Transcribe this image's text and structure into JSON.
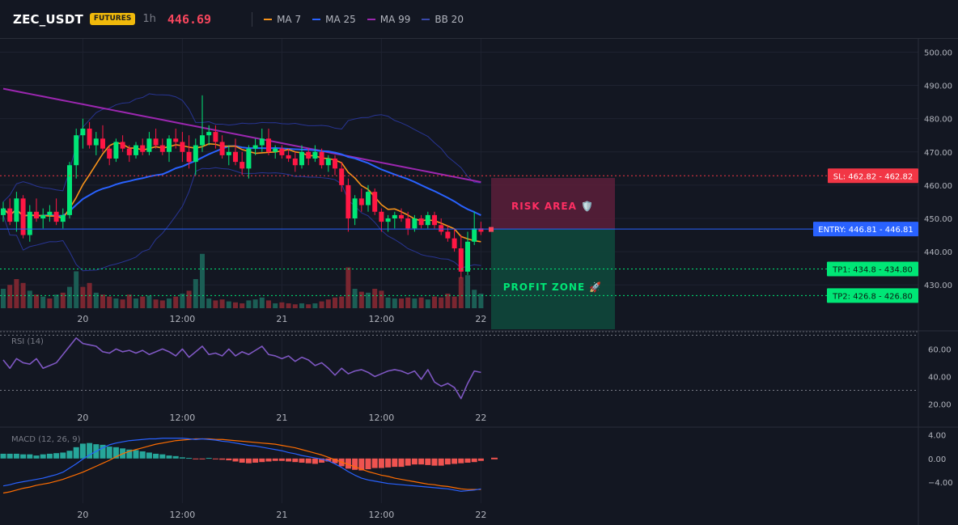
{
  "header": {
    "symbol": "ZEC_USDT",
    "badge": "FUTURES",
    "timeframe": "1h",
    "price": "446.69",
    "legend": [
      {
        "label": "MA 7",
        "color": "#f7931a"
      },
      {
        "label": "MA 25",
        "color": "#2962ff"
      },
      {
        "label": "MA 99",
        "color": "#9c27b0"
      },
      {
        "label": "BB 20",
        "color": "#3949ab"
      }
    ]
  },
  "colors": {
    "up": "#26a69a",
    "down": "#ef5350",
    "up_bright": "#00e676",
    "down_bright": "#ff1744",
    "vol_up": "#1b5e55",
    "vol_down": "#7a2630",
    "ma7": "#f7931a",
    "ma25": "#2962ff",
    "ma99": "#9c27b0",
    "bb": "#283593",
    "rsi": "#7e57c2",
    "macd": "#2962ff",
    "signal": "#ff6d00",
    "hist_up": "#26a69a",
    "hist_down": "#ef5350",
    "sl": "#f23645",
    "tp": "#00e676",
    "entry": "#2962ff"
  },
  "zones": {
    "risk_label": "RISK AREA 🛡️",
    "profit_label": "PROFIT ZONE 🚀"
  },
  "levels": {
    "sl": {
      "value": 462.82,
      "label": "SL: 462.82 - 462.82"
    },
    "entry": {
      "value": 446.81,
      "label": "ENTRY: 446.81 - 446.81"
    },
    "tp1": {
      "value": 434.8,
      "label": "TP1: 434.8 - 434.80"
    },
    "tp2": {
      "value": 426.8,
      "label": "TP2: 426.8 - 426.80"
    }
  },
  "chart_data": [
    {
      "type": "candlestick",
      "ylim": [
        423,
        504
      ],
      "y_ticks": [
        430,
        440,
        450,
        460,
        470,
        480,
        490,
        500
      ],
      "y_tick_labels": [
        "430.00",
        "440.00",
        "450.00",
        "460.00",
        "470.00",
        "480.00",
        "490.00",
        "500.00"
      ],
      "x_ticks": [
        {
          "label": "20",
          "index": 12
        },
        {
          "label": "12:00",
          "index": 27
        },
        {
          "label": "21",
          "index": 42
        },
        {
          "label": "12:00",
          "index": 57
        },
        {
          "label": "22",
          "index": 72
        }
      ],
      "ohlc": [
        [
          451,
          455,
          449,
          453
        ],
        [
          453,
          456,
          448,
          449
        ],
        [
          449,
          458,
          446,
          456
        ],
        [
          456,
          457,
          444,
          445
        ],
        [
          445,
          454,
          443,
          452
        ],
        [
          452,
          456,
          449,
          450
        ],
        [
          450,
          453,
          447,
          451
        ],
        [
          451,
          454,
          449,
          452
        ],
        [
          452,
          456,
          448,
          449
        ],
        [
          449,
          453,
          447,
          451
        ],
        [
          451,
          467,
          450,
          466
        ],
        [
          466,
          477,
          462,
          475
        ],
        [
          475,
          480,
          471,
          477
        ],
        [
          477,
          479,
          471,
          472
        ],
        [
          472,
          476,
          469,
          474
        ],
        [
          474,
          478,
          470,
          471
        ],
        [
          471,
          472,
          466,
          468
        ],
        [
          468,
          474,
          467,
          473
        ],
        [
          473,
          475,
          470,
          471
        ],
        [
          471,
          472,
          467,
          469
        ],
        [
          469,
          473,
          468,
          472
        ],
        [
          472,
          474,
          469,
          470
        ],
        [
          470,
          476,
          469,
          474
        ],
        [
          474,
          477,
          471,
          472
        ],
        [
          472,
          474,
          469,
          470
        ],
        [
          470,
          475,
          467,
          474
        ],
        [
          474,
          477,
          471,
          473
        ],
        [
          473,
          476,
          467,
          470
        ],
        [
          470,
          475,
          465,
          467
        ],
        [
          467,
          474,
          463,
          472
        ],
        [
          472,
          487,
          470,
          475
        ],
        [
          475,
          478,
          472,
          476
        ],
        [
          476,
          478,
          471,
          473
        ],
        [
          473,
          475,
          468,
          469
        ],
        [
          469,
          472,
          466,
          470
        ],
        [
          470,
          474,
          466,
          467
        ],
        [
          467,
          470,
          463,
          465
        ],
        [
          465,
          472,
          462,
          471
        ],
        [
          471,
          474,
          469,
          472
        ],
        [
          472,
          477,
          470,
          474
        ],
        [
          474,
          477,
          469,
          470
        ],
        [
          470,
          472,
          468,
          471
        ],
        [
          471,
          472,
          468,
          469
        ],
        [
          469,
          471,
          467,
          468
        ],
        [
          468,
          470,
          464,
          466
        ],
        [
          466,
          472,
          465,
          470
        ],
        [
          470,
          471,
          466,
          468
        ],
        [
          468,
          472,
          467,
          470
        ],
        [
          470,
          471,
          465,
          466
        ],
        [
          466,
          469,
          464,
          468
        ],
        [
          468,
          469,
          463,
          465
        ],
        [
          465,
          467,
          458,
          460
        ],
        [
          460,
          462,
          446,
          450
        ],
        [
          450,
          457,
          448,
          456
        ],
        [
          456,
          459,
          452,
          454
        ],
        [
          454,
          460,
          452,
          458
        ],
        [
          458,
          459,
          451,
          452
        ],
        [
          452,
          453,
          446,
          449
        ],
        [
          449,
          451,
          446,
          450
        ],
        [
          450,
          452,
          447,
          451
        ],
        [
          451,
          453,
          449,
          450
        ],
        [
          450,
          452,
          445,
          447
        ],
        [
          447,
          451,
          446,
          450
        ],
        [
          450,
          451,
          447,
          448
        ],
        [
          448,
          452,
          447,
          451
        ],
        [
          451,
          452,
          447,
          448
        ],
        [
          448,
          450,
          445,
          446
        ],
        [
          446,
          448,
          443,
          444
        ],
        [
          444,
          447,
          440,
          441
        ],
        [
          441,
          445,
          432,
          434
        ],
        [
          434,
          446,
          433,
          443
        ],
        [
          443,
          452,
          442,
          447
        ],
        [
          447,
          449,
          445,
          446
        ]
      ],
      "volume": [
        [
          2.0,
          0
        ],
        [
          2.4,
          1
        ],
        [
          3.0,
          1
        ],
        [
          2.6,
          1
        ],
        [
          1.8,
          0
        ],
        [
          1.4,
          1
        ],
        [
          1.2,
          0
        ],
        [
          1.0,
          1
        ],
        [
          1.4,
          0
        ],
        [
          1.6,
          1
        ],
        [
          2.2,
          0
        ],
        [
          3.8,
          0
        ],
        [
          2.2,
          1
        ],
        [
          2.6,
          1
        ],
        [
          1.6,
          0
        ],
        [
          1.4,
          1
        ],
        [
          1.2,
          1
        ],
        [
          1.0,
          0
        ],
        [
          0.9,
          1
        ],
        [
          1.4,
          1
        ],
        [
          1.0,
          0
        ],
        [
          1.2,
          1
        ],
        [
          1.3,
          0
        ],
        [
          0.9,
          1
        ],
        [
          0.8,
          1
        ],
        [
          1.0,
          0
        ],
        [
          1.2,
          1
        ],
        [
          1.5,
          0
        ],
        [
          1.8,
          1
        ],
        [
          3.0,
          0
        ],
        [
          5.6,
          0
        ],
        [
          1.0,
          0
        ],
        [
          0.8,
          1
        ],
        [
          0.9,
          1
        ],
        [
          0.7,
          0
        ],
        [
          0.6,
          1
        ],
        [
          0.5,
          1
        ],
        [
          0.8,
          0
        ],
        [
          0.9,
          0
        ],
        [
          1.1,
          0
        ],
        [
          0.8,
          1
        ],
        [
          0.5,
          0
        ],
        [
          0.6,
          1
        ],
        [
          0.5,
          1
        ],
        [
          0.4,
          1
        ],
        [
          0.5,
          0
        ],
        [
          0.4,
          1
        ],
        [
          0.5,
          0
        ],
        [
          0.7,
          1
        ],
        [
          0.9,
          1
        ],
        [
          1.1,
          1
        ],
        [
          1.2,
          1
        ],
        [
          4.2,
          1
        ],
        [
          2.0,
          0
        ],
        [
          1.7,
          1
        ],
        [
          1.6,
          0
        ],
        [
          2.0,
          1
        ],
        [
          1.8,
          1
        ],
        [
          1.1,
          0
        ],
        [
          1.0,
          0
        ],
        [
          1.0,
          1
        ],
        [
          1.1,
          1
        ],
        [
          1.0,
          0
        ],
        [
          1.1,
          1
        ],
        [
          0.9,
          0
        ],
        [
          1.2,
          1
        ],
        [
          1.1,
          1
        ],
        [
          1.5,
          1
        ],
        [
          1.2,
          1
        ],
        [
          3.2,
          1
        ],
        [
          3.4,
          0
        ],
        [
          1.9,
          0
        ],
        [
          1.5,
          0
        ]
      ]
    },
    {
      "type": "line",
      "title": "RSI (14)",
      "ylim": [
        15,
        72
      ],
      "y_ticks": [
        20,
        40,
        60
      ],
      "y_tick_labels": [
        "20.00",
        "40.00",
        "60.00"
      ],
      "bands": [
        70,
        30
      ],
      "values": [
        52,
        46,
        53,
        50,
        49,
        53,
        46,
        48,
        50,
        56,
        62,
        68,
        64,
        63,
        62,
        58,
        57,
        60,
        58,
        59,
        57,
        59,
        56,
        58,
        60,
        58,
        55,
        60,
        54,
        58,
        62,
        56,
        57,
        55,
        60,
        55,
        58,
        56,
        59,
        62,
        56,
        55,
        53,
        55,
        51,
        54,
        52,
        48,
        50,
        46,
        41,
        46,
        42,
        44,
        45,
        43,
        40,
        42,
        44,
        45,
        44,
        42,
        44,
        38,
        45,
        36,
        33,
        35,
        32,
        24,
        35,
        44,
        43
      ]
    },
    {
      "type": "bar",
      "title": "MACD (12, 26, 9)",
      "ylim": [
        -7.5,
        5
      ],
      "y_ticks": [
        4,
        0,
        -4
      ],
      "y_tick_labels": [
        "4.00",
        "0.00",
        "−4.00"
      ],
      "histogram": [
        0.8,
        0.8,
        0.8,
        0.7,
        0.7,
        0.5,
        0.7,
        0.8,
        0.9,
        1.0,
        1.3,
        1.9,
        2.5,
        2.6,
        2.4,
        2.3,
        2.0,
        1.9,
        1.7,
        1.5,
        1.4,
        1.2,
        1.0,
        0.8,
        0.7,
        0.5,
        0.4,
        0.2,
        0.1,
        -0.1,
        -0.1,
        0.1,
        -0.1,
        -0.2,
        -0.3,
        -0.5,
        -0.7,
        -0.8,
        -0.7,
        -0.6,
        -0.5,
        -0.4,
        -0.4,
        -0.5,
        -0.6,
        -0.7,
        -0.8,
        -0.9,
        -0.7,
        -0.5,
        -0.8,
        -1.3,
        -1.7,
        -1.9,
        -2.0,
        -1.8,
        -1.6,
        -1.6,
        -1.5,
        -1.4,
        -1.4,
        -1.2,
        -1.0,
        -1.0,
        -1.1,
        -1.2,
        -1.2,
        -1.0,
        -0.9,
        -0.8,
        -0.7,
        -0.6,
        -0.4
      ],
      "macd": [
        -4.6,
        -4.4,
        -4.1,
        -3.9,
        -3.7,
        -3.5,
        -3.3,
        -3.0,
        -2.7,
        -2.3,
        -1.6,
        -0.9,
        -0.1,
        0.6,
        1.2,
        1.8,
        2.3,
        2.6,
        2.8,
        3.0,
        3.1,
        3.2,
        3.3,
        3.3,
        3.4,
        3.4,
        3.4,
        3.4,
        3.3,
        3.2,
        3.3,
        3.2,
        3.1,
        2.9,
        2.8,
        2.6,
        2.4,
        2.2,
        2.1,
        1.9,
        1.7,
        1.5,
        1.3,
        1.0,
        0.8,
        0.5,
        0.3,
        0.1,
        -0.1,
        -0.4,
        -0.9,
        -1.5,
        -2.2,
        -2.8,
        -3.3,
        -3.6,
        -3.8,
        -4.0,
        -4.2,
        -4.3,
        -4.4,
        -4.5,
        -4.6,
        -4.7,
        -4.8,
        -4.9,
        -5.0,
        -5.1,
        -5.3,
        -5.5,
        -5.4,
        -5.3,
        -5.1
      ],
      "signal": [
        -5.8,
        -5.6,
        -5.3,
        -5.0,
        -4.8,
        -4.5,
        -4.3,
        -4.1,
        -3.8,
        -3.5,
        -3.1,
        -2.7,
        -2.3,
        -1.8,
        -1.3,
        -0.8,
        -0.3,
        0.3,
        0.8,
        1.2,
        1.5,
        1.8,
        2.1,
        2.4,
        2.6,
        2.8,
        3.0,
        3.1,
        3.2,
        3.3,
        3.3,
        3.3,
        3.2,
        3.2,
        3.1,
        3.0,
        2.9,
        2.8,
        2.7,
        2.6,
        2.5,
        2.4,
        2.2,
        2.0,
        1.8,
        1.5,
        1.2,
        0.9,
        0.6,
        0.2,
        -0.2,
        -0.6,
        -1.0,
        -1.4,
        -1.8,
        -2.2,
        -2.5,
        -2.8,
        -3.0,
        -3.3,
        -3.5,
        -3.7,
        -3.9,
        -4.1,
        -4.3,
        -4.4,
        -4.6,
        -4.7,
        -4.9,
        -5.1,
        -5.2,
        -5.2,
        -5.2
      ]
    }
  ]
}
